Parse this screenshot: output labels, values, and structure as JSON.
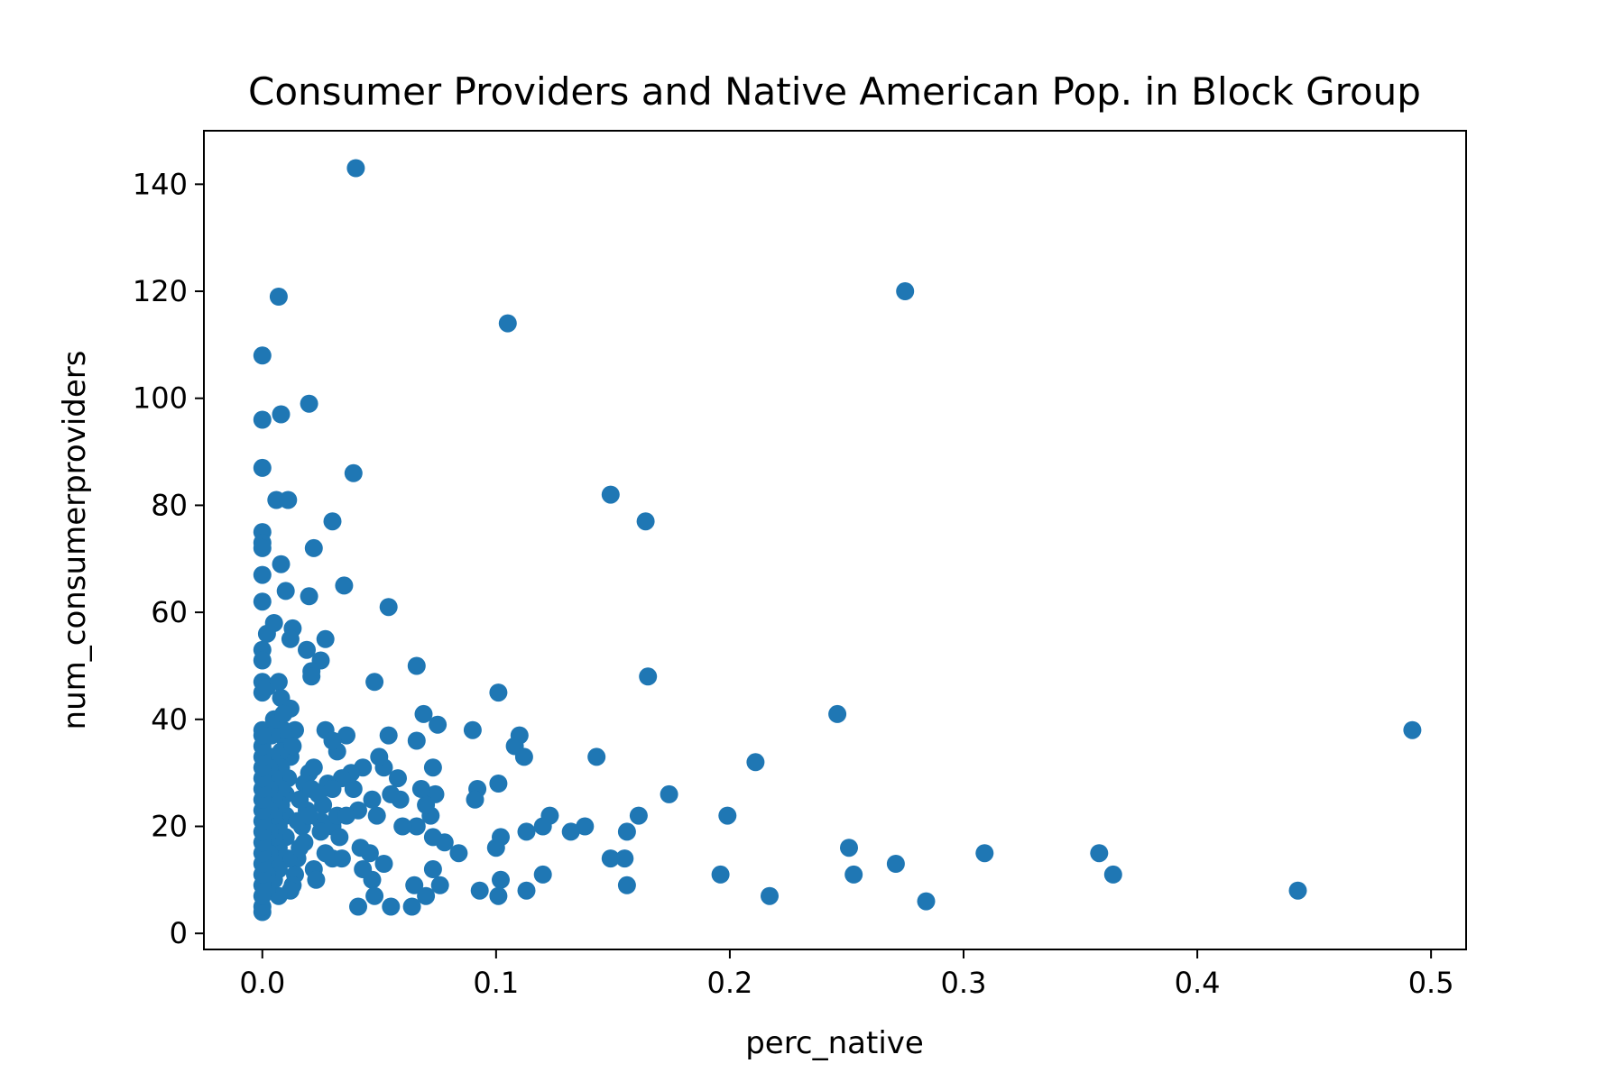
{
  "chart_data": {
    "type": "scatter",
    "title": "Consumer Providers and Native American Pop. in Block Group",
    "xlabel": "perc_native",
    "ylabel": "num_consumerproviders",
    "xlim": [
      -0.025,
      0.515
    ],
    "ylim": [
      -3,
      150
    ],
    "xticks": [
      0.0,
      0.1,
      0.2,
      0.3,
      0.4,
      0.5
    ],
    "xtick_labels": [
      "0.0",
      "0.1",
      "0.2",
      "0.3",
      "0.4",
      "0.5"
    ],
    "yticks": [
      0,
      20,
      40,
      60,
      80,
      100,
      120,
      140
    ],
    "ytick_labels": [
      "0",
      "20",
      "40",
      "60",
      "80",
      "100",
      "120",
      "140"
    ],
    "grid": false,
    "color": "#1f77b4",
    "series": [
      {
        "points": [
          [
            0.04,
            143
          ],
          [
            0.007,
            119
          ],
          [
            0.0,
            108
          ],
          [
            0.008,
            97
          ],
          [
            0.02,
            99
          ],
          [
            0.0,
            96
          ],
          [
            0.0,
            87
          ],
          [
            0.039,
            86
          ],
          [
            0.006,
            81
          ],
          [
            0.011,
            81
          ],
          [
            0.0,
            75
          ],
          [
            0.0,
            73
          ],
          [
            0.0,
            72
          ],
          [
            0.022,
            72
          ],
          [
            0.03,
            77
          ],
          [
            0.008,
            69
          ],
          [
            0.0,
            67
          ],
          [
            0.01,
            64
          ],
          [
            0.02,
            63
          ],
          [
            0.035,
            65
          ],
          [
            0.0,
            62
          ],
          [
            0.054,
            61
          ],
          [
            0.005,
            58
          ],
          [
            0.002,
            56
          ],
          [
            0.013,
            57
          ],
          [
            0.012,
            55
          ],
          [
            0.027,
            55
          ],
          [
            0.0,
            53
          ],
          [
            0.0,
            51
          ],
          [
            0.019,
            53
          ],
          [
            0.025,
            51
          ],
          [
            0.021,
            49
          ],
          [
            0.021,
            48
          ],
          [
            0.066,
            50
          ],
          [
            0.048,
            47
          ],
          [
            0.0,
            47
          ],
          [
            0.0,
            45
          ],
          [
            0.002,
            46
          ],
          [
            0.007,
            47
          ],
          [
            0.008,
            44
          ],
          [
            0.012,
            42
          ],
          [
            0.0,
            38
          ],
          [
            0.005,
            40
          ],
          [
            0.014,
            38
          ],
          [
            0.027,
            38
          ],
          [
            0.036,
            37
          ],
          [
            0.054,
            37
          ],
          [
            0.069,
            41
          ],
          [
            0.075,
            39
          ],
          [
            0.09,
            38
          ],
          [
            0.101,
            45
          ],
          [
            0.11,
            37
          ],
          [
            0.108,
            35
          ],
          [
            0.112,
            33
          ],
          [
            0.143,
            33
          ],
          [
            0.165,
            48
          ],
          [
            0.149,
            82
          ],
          [
            0.164,
            77
          ],
          [
            0.246,
            41
          ],
          [
            0.211,
            32
          ],
          [
            0.174,
            26
          ],
          [
            0.199,
            22
          ],
          [
            0.161,
            22
          ],
          [
            0.156,
            19
          ],
          [
            0.155,
            14
          ],
          [
            0.149,
            14
          ],
          [
            0.138,
            20
          ],
          [
            0.132,
            19
          ],
          [
            0.123,
            22
          ],
          [
            0.12,
            20
          ],
          [
            0.113,
            19
          ],
          [
            0.102,
            18
          ],
          [
            0.1,
            16
          ],
          [
            0.101,
            28
          ],
          [
            0.092,
            27
          ],
          [
            0.091,
            25
          ],
          [
            0.105,
            114
          ],
          [
            0.275,
            120
          ],
          [
            0.492,
            38
          ],
          [
            0.443,
            8
          ],
          [
            0.364,
            11
          ],
          [
            0.358,
            15
          ],
          [
            0.309,
            15
          ],
          [
            0.284,
            6
          ],
          [
            0.271,
            13
          ],
          [
            0.253,
            11
          ],
          [
            0.251,
            16
          ],
          [
            0.217,
            7
          ],
          [
            0.196,
            11
          ],
          [
            0.156,
            9
          ],
          [
            0.12,
            11
          ],
          [
            0.113,
            8
          ],
          [
            0.102,
            10
          ],
          [
            0.101,
            7
          ],
          [
            0.093,
            8
          ],
          [
            0.084,
            15
          ],
          [
            0.078,
            17
          ],
          [
            0.076,
            9
          ],
          [
            0.073,
            12
          ],
          [
            0.07,
            7
          ],
          [
            0.073,
            18
          ],
          [
            0.072,
            22
          ],
          [
            0.074,
            26
          ],
          [
            0.07,
            24
          ],
          [
            0.073,
            31
          ],
          [
            0.068,
            27
          ],
          [
            0.066,
            36
          ],
          [
            0.066,
            20
          ],
          [
            0.064,
            5
          ],
          [
            0.065,
            9
          ],
          [
            0.06,
            20
          ],
          [
            0.059,
            25
          ],
          [
            0.058,
            29
          ],
          [
            0.055,
            26
          ],
          [
            0.052,
            31
          ],
          [
            0.05,
            33
          ],
          [
            0.049,
            22
          ],
          [
            0.047,
            25
          ],
          [
            0.046,
            15
          ],
          [
            0.047,
            10
          ],
          [
            0.048,
            7
          ],
          [
            0.043,
            12
          ],
          [
            0.042,
            16
          ],
          [
            0.041,
            5
          ],
          [
            0.055,
            5
          ],
          [
            0.052,
            13
          ],
          [
            0.041,
            23
          ],
          [
            0.043,
            31
          ],
          [
            0.039,
            27
          ],
          [
            0.038,
            30
          ],
          [
            0.034,
            29
          ],
          [
            0.032,
            34
          ],
          [
            0.03,
            36
          ],
          [
            0.028,
            28
          ],
          [
            0.03,
            27
          ],
          [
            0.026,
            24
          ],
          [
            0.025,
            21
          ],
          [
            0.03,
            20
          ],
          [
            0.032,
            22
          ],
          [
            0.036,
            22
          ],
          [
            0.033,
            18
          ],
          [
            0.034,
            14
          ],
          [
            0.03,
            14
          ],
          [
            0.027,
            15
          ],
          [
            0.025,
            19
          ],
          [
            0.022,
            12
          ],
          [
            0.023,
            10
          ],
          [
            0.02,
            30
          ],
          [
            0.022,
            31
          ],
          [
            0.018,
            28
          ],
          [
            0.016,
            25
          ],
          [
            0.019,
            23
          ],
          [
            0.017,
            20
          ],
          [
            0.018,
            17
          ],
          [
            0.015,
            14
          ],
          [
            0.014,
            11
          ],
          [
            0.013,
            9
          ],
          [
            0.012,
            8
          ],
          [
            0.011,
            14
          ],
          [
            0.01,
            18
          ],
          [
            0.01,
            22
          ],
          [
            0.01,
            26
          ],
          [
            0.011,
            29
          ],
          [
            0.012,
            33
          ],
          [
            0.01,
            36
          ],
          [
            0.009,
            38
          ],
          [
            0.008,
            34
          ],
          [
            0.008,
            31
          ],
          [
            0.008,
            27
          ],
          [
            0.008,
            24
          ],
          [
            0.007,
            20
          ],
          [
            0.007,
            16
          ],
          [
            0.007,
            12
          ],
          [
            0.007,
            7
          ],
          [
            0.005,
            10
          ],
          [
            0.005,
            14
          ],
          [
            0.005,
            18
          ],
          [
            0.005,
            22
          ],
          [
            0.005,
            25
          ],
          [
            0.005,
            29
          ],
          [
            0.004,
            33
          ],
          [
            0.004,
            37
          ],
          [
            0.003,
            31
          ],
          [
            0.003,
            27
          ],
          [
            0.003,
            23
          ],
          [
            0.003,
            19
          ],
          [
            0.003,
            15
          ],
          [
            0.002,
            11
          ],
          [
            0.002,
            8
          ],
          [
            0.0,
            4
          ],
          [
            0.0,
            5
          ],
          [
            0.0,
            7
          ],
          [
            0.0,
            9
          ],
          [
            0.0,
            11
          ],
          [
            0.0,
            13
          ],
          [
            0.0,
            15
          ],
          [
            0.0,
            17
          ],
          [
            0.0,
            19
          ],
          [
            0.0,
            21
          ],
          [
            0.0,
            23
          ],
          [
            0.0,
            25
          ],
          [
            0.0,
            27
          ],
          [
            0.0,
            29
          ],
          [
            0.0,
            31
          ],
          [
            0.0,
            33
          ],
          [
            0.0,
            35
          ],
          [
            0.0,
            37
          ],
          [
            0.015,
            21
          ],
          [
            0.016,
            16
          ],
          [
            0.02,
            22
          ],
          [
            0.021,
            27
          ],
          [
            0.024,
            26
          ],
          [
            0.013,
            35
          ],
          [
            0.006,
            40
          ],
          [
            0.009,
            41
          ]
        ]
      }
    ]
  }
}
